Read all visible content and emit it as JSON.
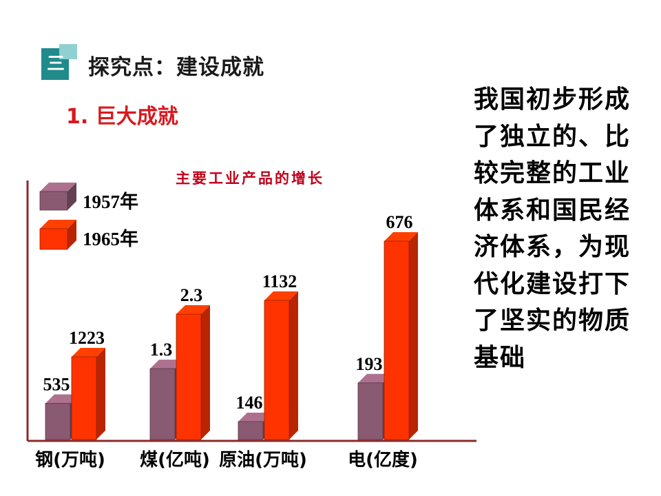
{
  "header": {
    "section_number": "三",
    "title": "探究点：建设成就"
  },
  "subheading": "1. 巨大成就",
  "side_text": "我国初步形成了独立的、比较完整的工业体系和国民经济体系，为现代化建设打下了坚实的物质基础",
  "colors": {
    "series_1957": "#8a5a72",
    "series_1965": "#ff3300",
    "axis": "#8b2a2a",
    "title": "#c0001a"
  },
  "chart_data": {
    "type": "bar",
    "title": "主要工业产品的增长",
    "categories": [
      "钢(万吨)",
      "煤(亿吨)",
      "原油(万吨)",
      "电(亿度)"
    ],
    "series": [
      {
        "name": "1957年",
        "values": [
          535,
          1.3,
          146,
          193
        ],
        "labels": [
          "535",
          "1.3",
          "146",
          "193"
        ]
      },
      {
        "name": "1965年",
        "values": [
          1223,
          2.3,
          1132,
          676
        ],
        "labels": [
          "1223",
          "2.3",
          "1132",
          "676"
        ]
      }
    ],
    "legend_position": "top-left",
    "grid": false
  }
}
